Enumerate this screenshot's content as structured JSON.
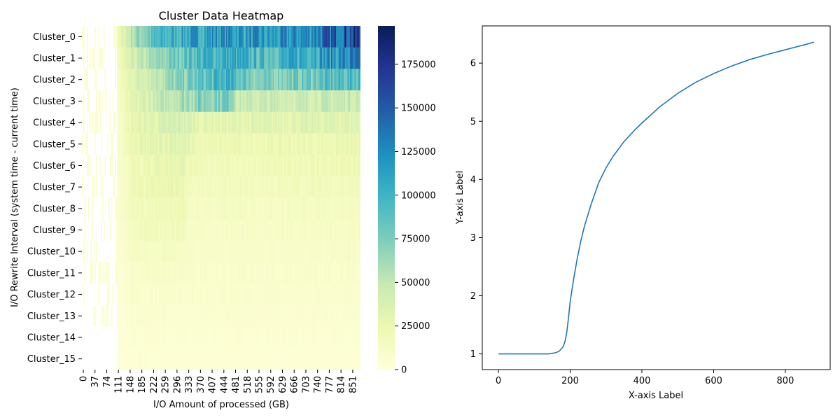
{
  "chart_data": [
    {
      "type": "heatmap",
      "title": "Cluster Data Heatmap",
      "xlabel": "I/O Amount of processed (GB)",
      "ylabel": "I/O Rewrite Interval (system time - current time)",
      "rows": [
        "Cluster_0",
        "Cluster_1",
        "Cluster_2",
        "Cluster_3",
        "Cluster_4",
        "Cluster_5",
        "Cluster_6",
        "Cluster_7",
        "Cluster_8",
        "Cluster_9",
        "Cluster_10",
        "Cluster_11",
        "Cluster_12",
        "Cluster_13",
        "Cluster_14",
        "Cluster_15"
      ],
      "x_tick_labels": [
        "0",
        "37",
        "74",
        "111",
        "148",
        "185",
        "222",
        "259",
        "296",
        "333",
        "370",
        "407",
        "444",
        "481",
        "518",
        "555",
        "592",
        "629",
        "666",
        "703",
        "740",
        "777",
        "814",
        "851"
      ],
      "x_range": [
        0,
        880
      ],
      "colormap": "YlGnBu",
      "colorbar_ticks": [
        "0",
        "25000",
        "50000",
        "75000",
        "100000",
        "125000",
        "150000",
        "175000"
      ],
      "value_range": [
        0,
        197000
      ],
      "row_profiles": [
        {
          "cluster": "Cluster_0",
          "start": 111,
          "segments": [
            [
              0,
              18000
            ],
            [
              50,
              60000
            ],
            [
              140,
              95000
            ],
            [
              240,
              110000
            ],
            [
              370,
              120000
            ],
            [
              480,
              110000
            ],
            [
              600,
              125000
            ],
            [
              700,
              150000
            ],
            [
              800,
              170000
            ],
            [
              870,
              195000
            ]
          ]
        },
        {
          "cluster": "Cluster_1",
          "start": 111,
          "segments": [
            [
              0,
              15000
            ],
            [
              50,
              40000
            ],
            [
              150,
              70000
            ],
            [
              250,
              95000
            ],
            [
              350,
              105000
            ],
            [
              460,
              90000
            ],
            [
              600,
              110000
            ],
            [
              700,
              120000
            ],
            [
              800,
              130000
            ],
            [
              870,
              140000
            ]
          ]
        },
        {
          "cluster": "Cluster_2",
          "start": 111,
          "segments": [
            [
              0,
              12000
            ],
            [
              50,
              35000
            ],
            [
              150,
              60000
            ],
            [
              250,
              80000
            ],
            [
              340,
              100000
            ],
            [
              455,
              70000
            ],
            [
              600,
              80000
            ],
            [
              700,
              90000
            ],
            [
              800,
              95000
            ],
            [
              870,
              100000
            ]
          ]
        },
        {
          "cluster": "Cluster_3",
          "start": 111,
          "segments": [
            [
              0,
              10000
            ],
            [
              50,
              30000
            ],
            [
              150,
              50000
            ],
            [
              250,
              70000
            ],
            [
              360,
              80000
            ],
            [
              380,
              45000
            ],
            [
              600,
              45000
            ],
            [
              870,
              50000
            ]
          ]
        },
        {
          "cluster": "Cluster_4",
          "start": 111,
          "segments": [
            [
              0,
              9000
            ],
            [
              50,
              28000
            ],
            [
              200,
              40000
            ],
            [
              260,
              30000
            ],
            [
              600,
              32000
            ],
            [
              870,
              34000
            ]
          ]
        },
        {
          "cluster": "Cluster_5",
          "start": 111,
          "segments": [
            [
              0,
              8000
            ],
            [
              50,
              25000
            ],
            [
              200,
              35000
            ],
            [
              250,
              22000
            ],
            [
              600,
              24000
            ],
            [
              870,
              25000
            ]
          ]
        },
        {
          "cluster": "Cluster_6",
          "start": 111,
          "segments": [
            [
              0,
              7000
            ],
            [
              50,
              22000
            ],
            [
              200,
              30000
            ],
            [
              250,
              18000
            ],
            [
              600,
              20000
            ],
            [
              870,
              22000
            ]
          ]
        },
        {
          "cluster": "Cluster_7",
          "start": 111,
          "segments": [
            [
              0,
              6000
            ],
            [
              50,
              20000
            ],
            [
              200,
              26000
            ],
            [
              240,
              15000
            ],
            [
              600,
              17000
            ],
            [
              870,
              18000
            ]
          ]
        },
        {
          "cluster": "Cluster_8",
          "start": 111,
          "segments": [
            [
              0,
              5000
            ],
            [
              50,
              18000
            ],
            [
              200,
              22000
            ],
            [
              230,
              13000
            ],
            [
              600,
              14000
            ],
            [
              870,
              15000
            ]
          ]
        },
        {
          "cluster": "Cluster_9",
          "start": 111,
          "segments": [
            [
              0,
              5000
            ],
            [
              50,
              16000
            ],
            [
              200,
              19000
            ],
            [
              230,
              11000
            ],
            [
              600,
              12000
            ],
            [
              870,
              13000
            ]
          ]
        },
        {
          "cluster": "Cluster_10",
          "start": 111,
          "segments": [
            [
              0,
              4000
            ],
            [
              50,
              12000
            ],
            [
              200,
              14000
            ],
            [
              230,
              9000
            ],
            [
              600,
              10000
            ],
            [
              870,
              11000
            ]
          ]
        },
        {
          "cluster": "Cluster_11",
          "start": 111,
          "segments": [
            [
              0,
              3000
            ],
            [
              50,
              10000
            ],
            [
              200,
              11000
            ],
            [
              230,
              8000
            ],
            [
              600,
              8500
            ],
            [
              870,
              9000
            ]
          ]
        },
        {
          "cluster": "Cluster_12",
          "start": 111,
          "segments": [
            [
              0,
              3000
            ],
            [
              50,
              8000
            ],
            [
              600,
              7000
            ],
            [
              870,
              7500
            ]
          ]
        },
        {
          "cluster": "Cluster_13",
          "start": 111,
          "segments": [
            [
              0,
              2000
            ],
            [
              50,
              6000
            ],
            [
              600,
              5500
            ],
            [
              870,
              6000
            ]
          ]
        },
        {
          "cluster": "Cluster_14",
          "start": 111,
          "segments": [
            [
              0,
              2000
            ],
            [
              50,
              4500
            ],
            [
              600,
              4000
            ],
            [
              870,
              4500
            ]
          ]
        },
        {
          "cluster": "Cluster_15",
          "start": 111,
          "segments": [
            [
              0,
              1500
            ],
            [
              50,
              3500
            ],
            [
              600,
              3000
            ],
            [
              870,
              3500
            ]
          ]
        }
      ]
    },
    {
      "type": "line",
      "title": "",
      "xlabel": "X-axis Label",
      "ylabel": "Y-axis Label",
      "xlim": [
        -45,
        925
      ],
      "ylim": [
        0.73,
        6.64
      ],
      "x_ticks": [
        0,
        200,
        400,
        600,
        800
      ],
      "y_ticks": [
        1,
        2,
        3,
        4,
        5,
        6
      ],
      "color": "#1f77b4",
      "series": [
        {
          "x": [
            0,
            50,
            100,
            140,
            160,
            170,
            180,
            185,
            190,
            195,
            200,
            210,
            220,
            230,
            240,
            260,
            280,
            300,
            320,
            350,
            380,
            400,
            450,
            500,
            550,
            600,
            650,
            700,
            750,
            800,
            850,
            880
          ],
          "y": [
            1.0,
            1.0,
            1.0,
            1.0,
            1.02,
            1.05,
            1.12,
            1.2,
            1.35,
            1.6,
            1.9,
            2.3,
            2.65,
            2.95,
            3.2,
            3.6,
            3.95,
            4.2,
            4.4,
            4.65,
            4.85,
            4.97,
            5.25,
            5.48,
            5.67,
            5.82,
            5.95,
            6.06,
            6.15,
            6.23,
            6.31,
            6.36
          ]
        }
      ]
    }
  ]
}
